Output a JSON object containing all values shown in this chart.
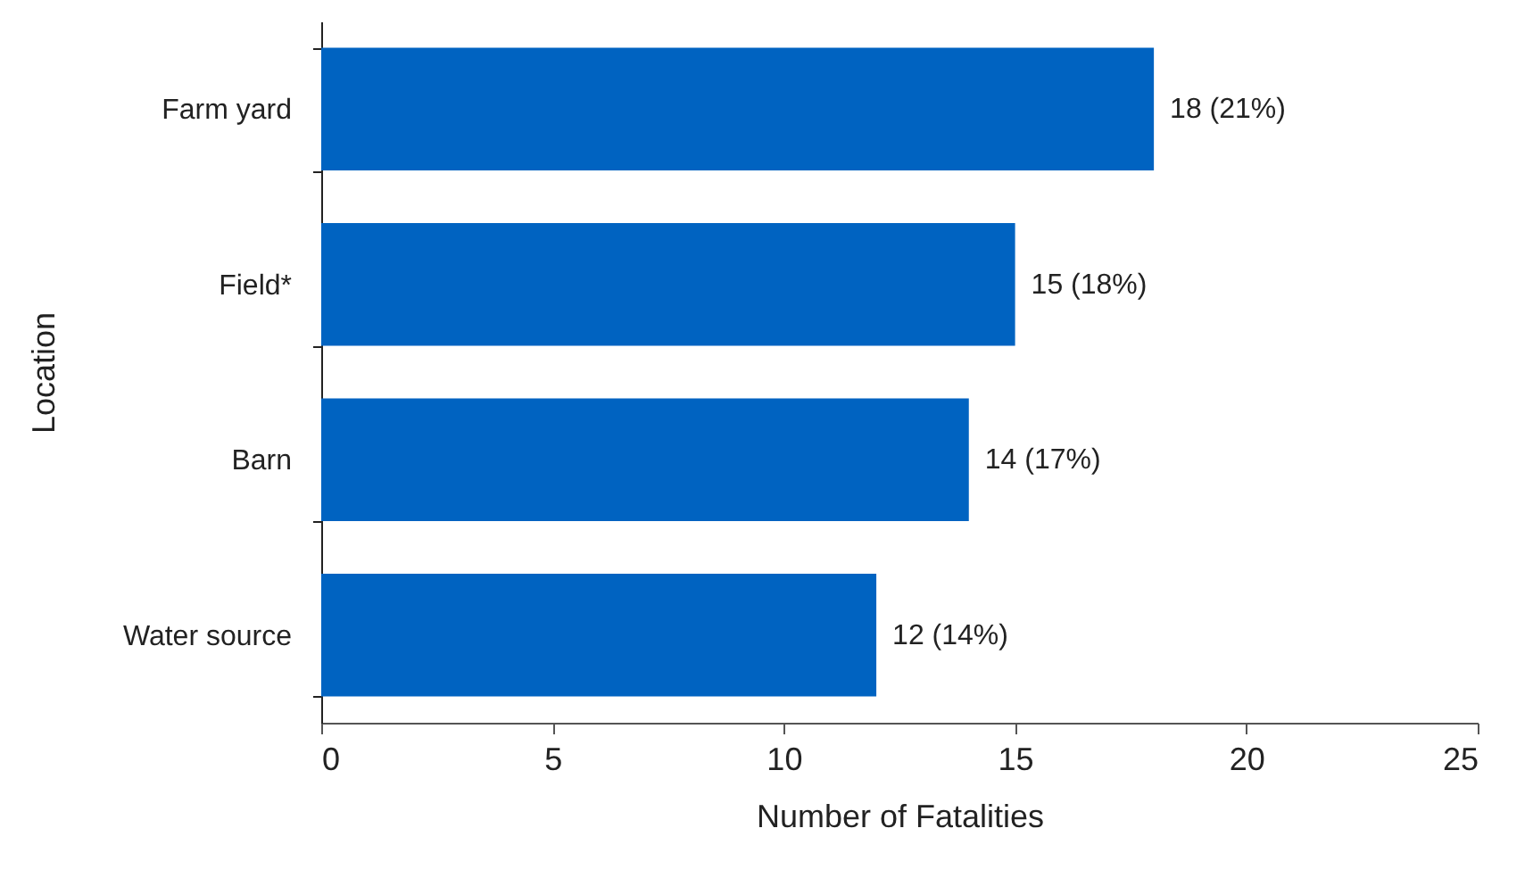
{
  "chart_data": {
    "type": "bar",
    "orientation": "horizontal",
    "xlabel": "Number of Fatalities",
    "ylabel": "Location",
    "categories": [
      "Farm yard",
      "Field*",
      "Barn",
      "Water source"
    ],
    "values": [
      18,
      15,
      14,
      12
    ],
    "value_labels": [
      "18 (21%)",
      "15 (18%)",
      "14 (17%)",
      "12 (14%)"
    ],
    "color": "#0063c1",
    "xlim": [
      0,
      25
    ],
    "xticks": [
      0,
      5,
      10,
      15,
      20,
      25
    ]
  }
}
